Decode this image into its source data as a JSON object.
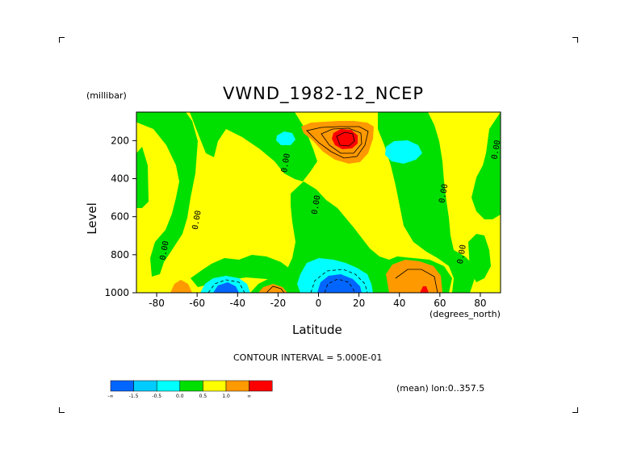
{
  "chart_data": {
    "type": "heatmap",
    "title": "VWND_1982-12_NCEP",
    "xlabel": "Latitude",
    "ylabel": "Level",
    "y_units": "(millibar)",
    "x_units": "(degrees_north)",
    "xlim": [
      -90,
      90
    ],
    "ylim": [
      1000,
      50
    ],
    "x_ticks": [
      -80,
      -60,
      -40,
      -20,
      0,
      20,
      40,
      60,
      80
    ],
    "x_tick_labels": [
      "-80",
      "-60",
      "-40",
      "-20",
      "0",
      "20",
      "40",
      "60",
      "80"
    ],
    "y_ticks": [
      200,
      400,
      600,
      800,
      1000
    ],
    "y_tick_labels": [
      "200",
      "400",
      "600",
      "800",
      "1000"
    ],
    "contour_interval_text": "CONTOUR INTERVAL = 5.000E-01",
    "mean_text": "(mean) lon:0..357.5",
    "contour_labels": [
      {
        "text": "0.00",
        "lat": -75,
        "level": 780
      },
      {
        "text": "0.00",
        "lat": -59,
        "level": 620
      },
      {
        "text": "0.00",
        "lat": -15,
        "level": 320
      },
      {
        "text": "0.00",
        "lat": 0,
        "level": 540
      },
      {
        "text": "0.00",
        "lat": 63,
        "level": 480
      },
      {
        "text": "0.00",
        "lat": 72,
        "level": 800
      },
      {
        "text": "0.00",
        "lat": 89,
        "level": 250
      }
    ],
    "colorbar": {
      "colors": [
        "#0066ff",
        "#00ccff",
        "#00ffff",
        "#00e000",
        "#ffff00",
        "#ff9900",
        "#ff0000"
      ],
      "tick_labels": [
        "-∞",
        "-1.5",
        "-0.5",
        "0.0",
        "0.5",
        "1.0",
        "∞"
      ]
    },
    "regions": [
      {
        "value_class": "positive",
        "color": "#ffff00",
        "desc": "background"
      },
      {
        "value_class": "negative",
        "color": "#00e000"
      },
      {
        "value_class": "strong_negative",
        "color": "#00ffff"
      },
      {
        "value_class": "strongest_negative",
        "color": "#0066ff"
      },
      {
        "value_class": "strong_positive",
        "color": "#ff9900"
      },
      {
        "value_class": "strongest_positive",
        "color": "#ff0000"
      }
    ]
  }
}
